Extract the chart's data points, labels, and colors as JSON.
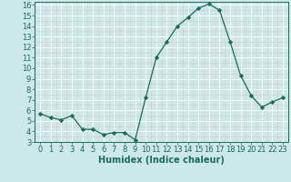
{
  "x": [
    0,
    1,
    2,
    3,
    4,
    5,
    6,
    7,
    8,
    9,
    10,
    11,
    12,
    13,
    14,
    15,
    16,
    17,
    18,
    19,
    20,
    21,
    22,
    23
  ],
  "y": [
    5.7,
    5.3,
    5.1,
    5.5,
    4.2,
    4.2,
    3.7,
    3.9,
    3.9,
    3.2,
    7.2,
    11.0,
    12.5,
    14.0,
    14.8,
    15.7,
    16.1,
    15.5,
    12.5,
    9.3,
    7.4,
    6.3,
    6.8,
    7.2
  ],
  "xlabel": "Humidex (Indice chaleur)",
  "ylim": [
    3,
    16.3
  ],
  "xlim": [
    -0.5,
    23.5
  ],
  "yticks": [
    3,
    4,
    5,
    6,
    7,
    8,
    9,
    10,
    11,
    12,
    13,
    14,
    15,
    16
  ],
  "xticks": [
    0,
    1,
    2,
    3,
    4,
    5,
    6,
    7,
    8,
    9,
    10,
    11,
    12,
    13,
    14,
    15,
    16,
    17,
    18,
    19,
    20,
    21,
    22,
    23
  ],
  "line_color": "#1a6b5a",
  "marker": "D",
  "marker_size": 2.2,
  "bg_color": "#cce8e8",
  "grid_major_color": "#ffffff",
  "grid_minor_color": "#e0c8c8",
  "axis_color": "#1a6b5a",
  "xlabel_fontsize": 7,
  "tick_fontsize": 6,
  "line_width": 0.9
}
